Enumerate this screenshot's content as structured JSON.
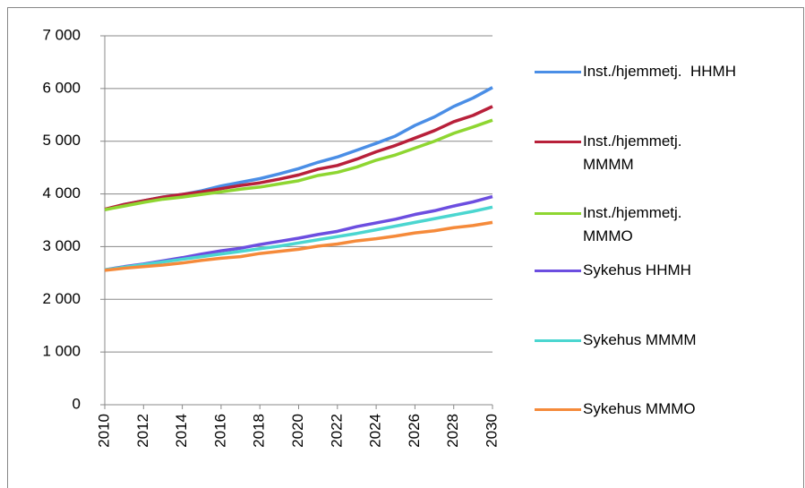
{
  "chart_data": {
    "type": "line",
    "x": [
      2010,
      2011,
      2012,
      2013,
      2014,
      2015,
      2016,
      2017,
      2018,
      2019,
      2020,
      2021,
      2022,
      2023,
      2024,
      2025,
      2026,
      2027,
      2028,
      2029,
      2030
    ],
    "xlim": [
      2010,
      2030
    ],
    "xticks": [
      2010,
      2012,
      2014,
      2016,
      2018,
      2020,
      2022,
      2024,
      2026,
      2028,
      2030
    ],
    "ylim": [
      0,
      7000
    ],
    "yticks": [
      0,
      {
        "value": 1000,
        "label": "1 000"
      },
      {
        "value": 2000,
        "label": "2 000"
      },
      {
        "value": 3000,
        "label": "3 000"
      },
      {
        "value": 4000,
        "label": "4 000"
      },
      {
        "value": 5000,
        "label": "5 000"
      },
      {
        "value": 6000,
        "label": "6 000"
      },
      {
        "value": 7000,
        "label": "7 000"
      }
    ],
    "grid": true,
    "legend": "right",
    "series": [
      {
        "name": "Inst./hjemmetj.  HHMH",
        "color": "#4a8ee6",
        "values": [
          3700,
          3800,
          3870,
          3940,
          3990,
          4060,
          4150,
          4220,
          4290,
          4380,
          4480,
          4600,
          4700,
          4830,
          4960,
          5100,
          5300,
          5460,
          5660,
          5820,
          6020
        ]
      },
      {
        "name": "Inst./hjemmetj. MMMM",
        "color": "#b8203a",
        "values": [
          3710,
          3800,
          3870,
          3940,
          3990,
          4040,
          4100,
          4160,
          4210,
          4280,
          4360,
          4470,
          4540,
          4660,
          4800,
          4920,
          5060,
          5200,
          5370,
          5490,
          5660
        ]
      },
      {
        "name": "Inst./hjemmetj. MMMO",
        "color": "#8ed631",
        "values": [
          3700,
          3770,
          3840,
          3900,
          3940,
          3990,
          4040,
          4090,
          4130,
          4190,
          4250,
          4350,
          4410,
          4510,
          4640,
          4740,
          4870,
          5000,
          5150,
          5270,
          5400
        ]
      },
      {
        "name": "Sykehus HHMH",
        "color": "#6c4ee0",
        "values": [
          2560,
          2620,
          2670,
          2730,
          2790,
          2860,
          2920,
          2970,
          3040,
          3100,
          3160,
          3230,
          3290,
          3380,
          3450,
          3520,
          3610,
          3680,
          3770,
          3850,
          3950
        ]
      },
      {
        "name": "Sykehus MMMM",
        "color": "#4bd6d0",
        "values": [
          2560,
          2610,
          2660,
          2710,
          2760,
          2810,
          2860,
          2910,
          2960,
          3010,
          3070,
          3130,
          3190,
          3250,
          3320,
          3390,
          3460,
          3530,
          3600,
          3670,
          3750
        ]
      },
      {
        "name": "Sykehus MMMO",
        "color": "#f58a3a",
        "values": [
          2550,
          2590,
          2620,
          2650,
          2690,
          2740,
          2780,
          2810,
          2870,
          2910,
          2950,
          3010,
          3050,
          3110,
          3150,
          3200,
          3260,
          3300,
          3360,
          3400,
          3460
        ]
      }
    ]
  }
}
